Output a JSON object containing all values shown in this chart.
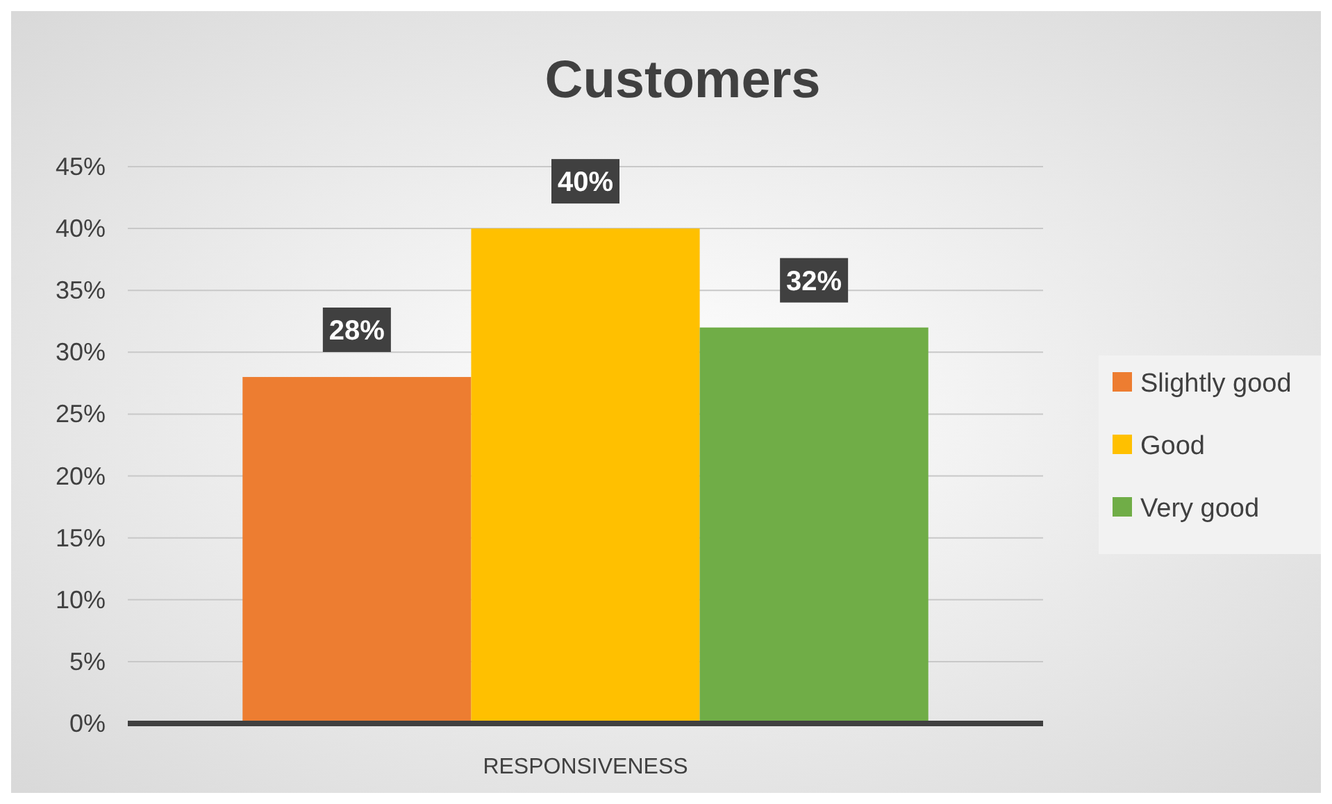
{
  "chart_data": {
    "type": "bar",
    "title": "Customers",
    "categories": [
      "RESPONSIVENESS"
    ],
    "series": [
      {
        "name": "Slightly good",
        "color": "#ed7d31",
        "values": [
          28
        ],
        "value_labels": [
          "28%"
        ]
      },
      {
        "name": "Good",
        "color": "#ffc000",
        "values": [
          40
        ],
        "value_labels": [
          "40%"
        ]
      },
      {
        "name": "Very good",
        "color": "#70ad47",
        "values": [
          32
        ],
        "value_labels": [
          "32%"
        ]
      }
    ],
    "ylim": [
      0,
      45
    ],
    "yticks": [
      {
        "value": 0,
        "label": "0%"
      },
      {
        "value": 5,
        "label": "5%"
      },
      {
        "value": 10,
        "label": "10%"
      },
      {
        "value": 15,
        "label": "15%"
      },
      {
        "value": 20,
        "label": "20%"
      },
      {
        "value": 25,
        "label": "25%"
      },
      {
        "value": 30,
        "label": "30%"
      },
      {
        "value": 35,
        "label": "35%"
      },
      {
        "value": 40,
        "label": "40%"
      },
      {
        "value": 45,
        "label": "45%"
      }
    ],
    "grid": "y",
    "legend": "right"
  }
}
